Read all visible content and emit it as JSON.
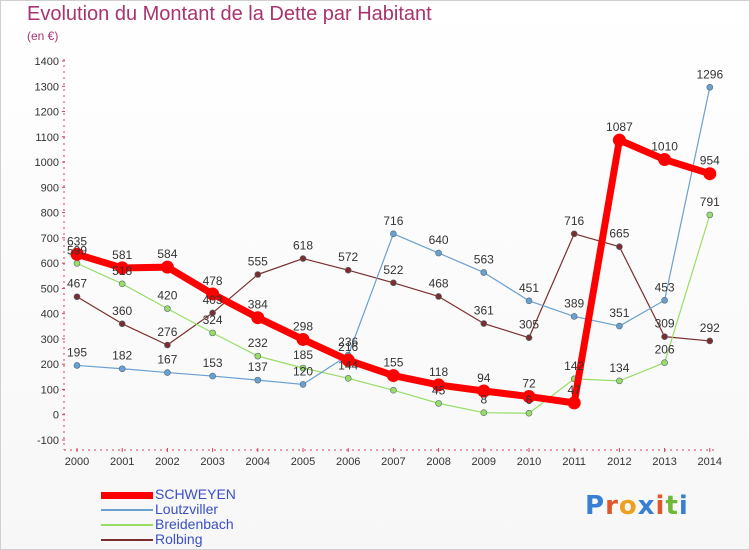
{
  "header": {
    "title": "Evolution du Montant de la Dette par Habitant",
    "unit": "(en €)"
  },
  "logo": {
    "text": "Proxiti",
    "colors": [
      "#3a7fd6",
      "#e0572a",
      "#f0a020",
      "#3a7fd6",
      "#e0572a",
      "#6fb93a",
      "#3a7fd6"
    ]
  },
  "chart_data": {
    "type": "line",
    "x": [
      "2000",
      "2001",
      "2002",
      "2003",
      "2004",
      "2005",
      "2006",
      "2007",
      "2008",
      "2009",
      "2010",
      "2011",
      "2012",
      "2013",
      "2014"
    ],
    "ylim": [
      -100,
      1400
    ],
    "yticks": [
      -100,
      0,
      100,
      200,
      300,
      400,
      500,
      600,
      700,
      800,
      900,
      1000,
      1100,
      1200,
      1300,
      1400
    ],
    "grid": false,
    "legend_position": "bottom-left",
    "series": [
      {
        "name": "SCHWEYEN",
        "color": "#ff0000",
        "values": [
          635,
          581,
          584,
          478,
          384,
          298,
          216,
          155,
          118,
          94,
          72,
          47,
          1087,
          1010,
          954
        ]
      },
      {
        "name": "Loutzviller",
        "color": "#6aa0cf",
        "values": [
          195,
          182,
          167,
          153,
          137,
          120,
          236,
          716,
          640,
          563,
          451,
          389,
          351,
          453,
          1296
        ]
      },
      {
        "name": "Breidenbach",
        "color": "#99dd66",
        "values": [
          599,
          518,
          420,
          324,
          232,
          185,
          144,
          97,
          45,
          8,
          6,
          142,
          134,
          206,
          791
        ]
      },
      {
        "name": "Rolbing",
        "color": "#7b2e2e",
        "values": [
          467,
          360,
          276,
          403,
          555,
          618,
          572,
          522,
          468,
          361,
          305,
          716,
          665,
          309,
          292
        ]
      }
    ],
    "point_labels": {
      "SCHWEYEN": [
        "635",
        "581",
        "584",
        "478",
        "384",
        "298",
        "216",
        "155",
        "118",
        "94",
        "72",
        "47",
        "1087",
        "1010",
        "954"
      ],
      "Loutzviller": [
        "195",
        "182",
        "167",
        "153",
        "137",
        "120",
        "236",
        "716",
        "640",
        "563",
        "451",
        "389",
        "351",
        "453",
        "1296"
      ],
      "Breidenbach": [
        "599",
        "518",
        "420",
        "324",
        "232",
        "185",
        "144",
        "",
        "45",
        "8",
        "6",
        "142",
        "134",
        "206",
        "791"
      ],
      "Rolbing": [
        "467",
        "360",
        "276",
        "403",
        "555",
        "618",
        "572",
        "522",
        "468",
        "361",
        "305",
        "716",
        "665",
        "309",
        "292"
      ]
    }
  }
}
